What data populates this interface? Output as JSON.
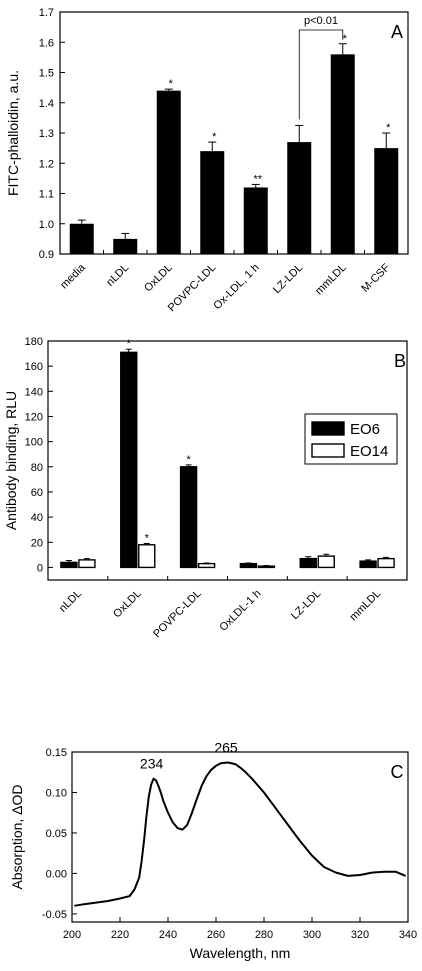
{
  "chart_data": [
    {
      "panel": "A",
      "type": "bar",
      "ylabel": "FITC-phalloidin, a.u.",
      "xlabel": "",
      "ylim": [
        0.9,
        1.7
      ],
      "yticks": [
        "0.9",
        "1.0",
        "1.1",
        "1.2",
        "1.3",
        "1.4",
        "1.5",
        "1.6",
        "1.7"
      ],
      "categories": [
        "media",
        "nLDL",
        "OxLDL",
        "POVPC-LDL",
        "Ox-LDL, 1 h",
        "LZ-LDL",
        "mmLDL",
        "M-CSF"
      ],
      "values": [
        1.0,
        0.95,
        1.44,
        1.24,
        1.12,
        1.27,
        1.56,
        1.25
      ],
      "errors": [
        0.012,
        0.018,
        0.005,
        0.03,
        0.01,
        0.055,
        0.035,
        0.05
      ],
      "significance": [
        "",
        "",
        "*",
        "*",
        "**",
        "",
        "*",
        "*"
      ],
      "comparison": {
        "from": "LZ-LDL",
        "to": "mmLDL",
        "label": "p<0.01"
      },
      "color": "#000000"
    },
    {
      "panel": "B",
      "type": "bar",
      "ylabel": "Antibody binding, RLU",
      "xlabel": "",
      "ylim": [
        -10,
        180
      ],
      "yticks": [
        "0",
        "20",
        "40",
        "60",
        "80",
        "100",
        "120",
        "140",
        "160",
        "180"
      ],
      "categories": [
        "nLDL",
        "OxLDL",
        "POVPC-LDL",
        "OxLDL-1 h",
        "LZ-LDL",
        "mmLDL"
      ],
      "series": [
        {
          "name": "EO6",
          "values": [
            4,
            171,
            80,
            3,
            7,
            5
          ],
          "errors": [
            1.5,
            2.5,
            1.5,
            0.5,
            1.5,
            1
          ],
          "significance": [
            "",
            "*",
            "*",
            "",
            "",
            ""
          ],
          "fill": "#000000"
        },
        {
          "name": "EO14",
          "values": [
            6,
            18,
            3,
            1,
            9,
            7
          ],
          "errors": [
            1,
            1,
            0.5,
            0.5,
            1.5,
            1
          ],
          "significance": [
            "",
            "*",
            "",
            "",
            "",
            ""
          ],
          "fill": "#ffffff"
        }
      ],
      "legend_position": "top-right"
    },
    {
      "panel": "C",
      "type": "line",
      "xlabel": "Wavelength, nm",
      "ylabel": "Absorption, ΔOD",
      "xlim": [
        200,
        340
      ],
      "ylim": [
        -0.06,
        0.15
      ],
      "xticks": [
        "200",
        "220",
        "240",
        "260",
        "280",
        "300",
        "320",
        "340"
      ],
      "yticks": [
        "-0.05",
        "0.00",
        "0.05",
        "0.10",
        "0.15"
      ],
      "peak_labels": [
        {
          "x": 234,
          "y": 0.117,
          "text": "234"
        },
        {
          "x": 265,
          "y": 0.137,
          "text": "265"
        }
      ],
      "x": [
        201,
        205,
        210,
        215,
        220,
        224,
        226,
        228,
        229,
        230,
        231,
        232,
        233,
        234,
        235,
        236,
        237,
        238,
        240,
        242,
        244,
        246,
        248,
        250,
        252,
        254,
        256,
        258,
        260,
        262,
        265,
        268,
        270,
        272,
        275,
        280,
        285,
        290,
        295,
        300,
        305,
        310,
        315,
        320,
        325,
        330,
        335,
        339
      ],
      "y": [
        -0.04,
        -0.038,
        -0.036,
        -0.034,
        -0.031,
        -0.028,
        -0.02,
        -0.005,
        0.015,
        0.04,
        0.07,
        0.095,
        0.11,
        0.117,
        0.115,
        0.108,
        0.1,
        0.09,
        0.075,
        0.063,
        0.056,
        0.054,
        0.06,
        0.075,
        0.092,
        0.108,
        0.12,
        0.128,
        0.133,
        0.136,
        0.137,
        0.135,
        0.131,
        0.126,
        0.117,
        0.1,
        0.08,
        0.06,
        0.04,
        0.022,
        0.008,
        0.001,
        -0.003,
        -0.002,
        0.001,
        0.002,
        0.002,
        -0.003
      ],
      "color": "#000000"
    }
  ]
}
